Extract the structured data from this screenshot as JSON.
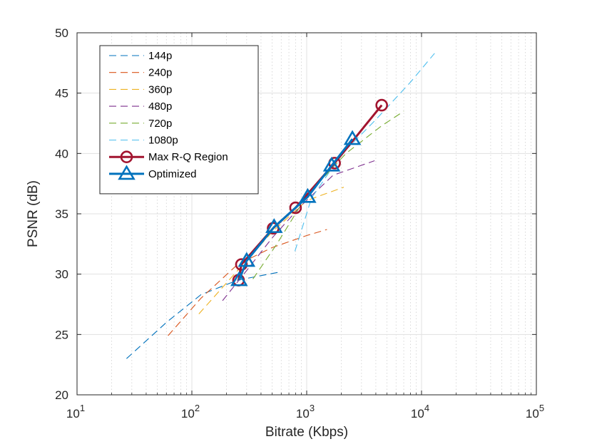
{
  "chart_data": {
    "type": "line",
    "title": "",
    "xlabel": "Bitrate (Kbps)",
    "ylabel": "PSNR (dB)",
    "xscale": "log",
    "xlim": [
      10,
      100000
    ],
    "ylim": [
      20,
      50
    ],
    "grid": true,
    "legend_position": "top-left",
    "x_ticks": [
      {
        "value": 10,
        "base": "10",
        "exp": "1"
      },
      {
        "value": 100,
        "base": "10",
        "exp": "2"
      },
      {
        "value": 1000,
        "base": "10",
        "exp": "3"
      },
      {
        "value": 10000,
        "base": "10",
        "exp": "4"
      },
      {
        "value": 100000,
        "base": "10",
        "exp": "5"
      }
    ],
    "y_ticks": [
      {
        "value": 20,
        "label": "20"
      },
      {
        "value": 25,
        "label": "25"
      },
      {
        "value": 30,
        "label": "30"
      },
      {
        "value": 35,
        "label": "35"
      },
      {
        "value": 40,
        "label": "40"
      },
      {
        "value": 45,
        "label": "45"
      },
      {
        "value": 50,
        "label": "50"
      }
    ],
    "series": [
      {
        "name": "144p",
        "color": "#0072BD",
        "style": "dashed",
        "marker": "none",
        "x": [
          27,
          60,
          120,
          250,
          600
        ],
        "y": [
          23.0,
          26.0,
          28.3,
          29.5,
          30.2
        ]
      },
      {
        "name": "240p",
        "color": "#D95319",
        "style": "dashed",
        "marker": "none",
        "x": [
          62,
          120,
          250,
          500,
          1000,
          1500
        ],
        "y": [
          24.9,
          28.0,
          30.8,
          32.2,
          33.2,
          33.7
        ]
      },
      {
        "name": "360p",
        "color": "#EDB120",
        "style": "dashed",
        "marker": "none",
        "x": [
          115,
          250,
          500,
          1000,
          2100
        ],
        "y": [
          26.7,
          30.3,
          33.5,
          36.1,
          37.2
        ]
      },
      {
        "name": "480p",
        "color": "#7E2F8E",
        "style": "dashed",
        "marker": "none",
        "x": [
          185,
          300,
          500,
          900,
          1700,
          3900
        ],
        "y": [
          27.8,
          30.3,
          33.0,
          35.7,
          38.2,
          39.4
        ]
      },
      {
        "name": "720p",
        "color": "#77AC30",
        "style": "dashed",
        "marker": "none",
        "x": [
          340,
          550,
          1000,
          2200,
          4500,
          7000
        ],
        "y": [
          29.6,
          32.5,
          36.5,
          40.0,
          42.3,
          43.5
        ]
      },
      {
        "name": "1080p",
        "color": "#4DBEEE",
        "style": "dashed",
        "marker": "none",
        "x": [
          790,
          1100,
          2000,
          4000,
          8000,
          13000
        ],
        "y": [
          31.9,
          36.3,
          39.9,
          42.8,
          45.9,
          48.3
        ]
      },
      {
        "name": "Max R-Q Region",
        "color": "#A2142F",
        "style": "solid",
        "marker": "circle",
        "x": [
          255,
          270,
          510,
          800,
          1750,
          4500
        ],
        "y": [
          29.5,
          30.8,
          33.8,
          35.5,
          39.2,
          44.0
        ]
      },
      {
        "name": "Optimized",
        "color": "#0072BD",
        "style": "solid",
        "marker": "triangle",
        "x": [
          258,
          300,
          520,
          1020,
          1650,
          2500
        ],
        "y": [
          29.5,
          31.1,
          33.9,
          36.4,
          39.0,
          41.2
        ]
      }
    ]
  }
}
